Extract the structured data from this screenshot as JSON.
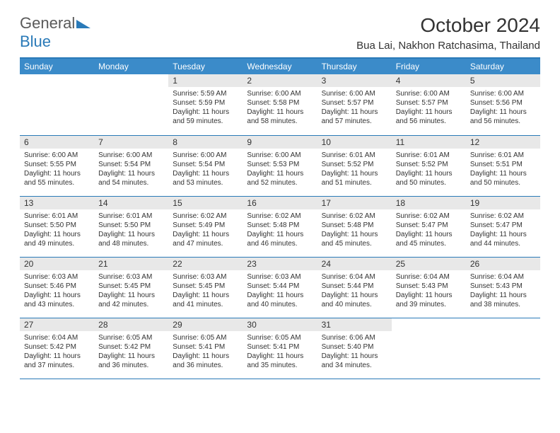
{
  "brand": {
    "general": "General",
    "blue": "Blue"
  },
  "title": "October 2024",
  "location": "Bua Lai, Nakhon Ratchasima, Thailand",
  "colors": {
    "header_bg": "#3b8bc9",
    "header_text": "#ffffff",
    "border": "#2a7ab8",
    "daynum_bg": "#e8e8e8",
    "text": "#333333",
    "logo_gray": "#5a5a5a",
    "logo_blue": "#2a7ab8"
  },
  "day_headers": [
    "Sunday",
    "Monday",
    "Tuesday",
    "Wednesday",
    "Thursday",
    "Friday",
    "Saturday"
  ],
  "weeks": [
    [
      null,
      null,
      {
        "n": "1",
        "sr": "5:59 AM",
        "ss": "5:59 PM",
        "dl": "11 hours and 59 minutes."
      },
      {
        "n": "2",
        "sr": "6:00 AM",
        "ss": "5:58 PM",
        "dl": "11 hours and 58 minutes."
      },
      {
        "n": "3",
        "sr": "6:00 AM",
        "ss": "5:57 PM",
        "dl": "11 hours and 57 minutes."
      },
      {
        "n": "4",
        "sr": "6:00 AM",
        "ss": "5:57 PM",
        "dl": "11 hours and 56 minutes."
      },
      {
        "n": "5",
        "sr": "6:00 AM",
        "ss": "5:56 PM",
        "dl": "11 hours and 56 minutes."
      }
    ],
    [
      {
        "n": "6",
        "sr": "6:00 AM",
        "ss": "5:55 PM",
        "dl": "11 hours and 55 minutes."
      },
      {
        "n": "7",
        "sr": "6:00 AM",
        "ss": "5:54 PM",
        "dl": "11 hours and 54 minutes."
      },
      {
        "n": "8",
        "sr": "6:00 AM",
        "ss": "5:54 PM",
        "dl": "11 hours and 53 minutes."
      },
      {
        "n": "9",
        "sr": "6:00 AM",
        "ss": "5:53 PM",
        "dl": "11 hours and 52 minutes."
      },
      {
        "n": "10",
        "sr": "6:01 AM",
        "ss": "5:52 PM",
        "dl": "11 hours and 51 minutes."
      },
      {
        "n": "11",
        "sr": "6:01 AM",
        "ss": "5:52 PM",
        "dl": "11 hours and 50 minutes."
      },
      {
        "n": "12",
        "sr": "6:01 AM",
        "ss": "5:51 PM",
        "dl": "11 hours and 50 minutes."
      }
    ],
    [
      {
        "n": "13",
        "sr": "6:01 AM",
        "ss": "5:50 PM",
        "dl": "11 hours and 49 minutes."
      },
      {
        "n": "14",
        "sr": "6:01 AM",
        "ss": "5:50 PM",
        "dl": "11 hours and 48 minutes."
      },
      {
        "n": "15",
        "sr": "6:02 AM",
        "ss": "5:49 PM",
        "dl": "11 hours and 47 minutes."
      },
      {
        "n": "16",
        "sr": "6:02 AM",
        "ss": "5:48 PM",
        "dl": "11 hours and 46 minutes."
      },
      {
        "n": "17",
        "sr": "6:02 AM",
        "ss": "5:48 PM",
        "dl": "11 hours and 45 minutes."
      },
      {
        "n": "18",
        "sr": "6:02 AM",
        "ss": "5:47 PM",
        "dl": "11 hours and 45 minutes."
      },
      {
        "n": "19",
        "sr": "6:02 AM",
        "ss": "5:47 PM",
        "dl": "11 hours and 44 minutes."
      }
    ],
    [
      {
        "n": "20",
        "sr": "6:03 AM",
        "ss": "5:46 PM",
        "dl": "11 hours and 43 minutes."
      },
      {
        "n": "21",
        "sr": "6:03 AM",
        "ss": "5:45 PM",
        "dl": "11 hours and 42 minutes."
      },
      {
        "n": "22",
        "sr": "6:03 AM",
        "ss": "5:45 PM",
        "dl": "11 hours and 41 minutes."
      },
      {
        "n": "23",
        "sr": "6:03 AM",
        "ss": "5:44 PM",
        "dl": "11 hours and 40 minutes."
      },
      {
        "n": "24",
        "sr": "6:04 AM",
        "ss": "5:44 PM",
        "dl": "11 hours and 40 minutes."
      },
      {
        "n": "25",
        "sr": "6:04 AM",
        "ss": "5:43 PM",
        "dl": "11 hours and 39 minutes."
      },
      {
        "n": "26",
        "sr": "6:04 AM",
        "ss": "5:43 PM",
        "dl": "11 hours and 38 minutes."
      }
    ],
    [
      {
        "n": "27",
        "sr": "6:04 AM",
        "ss": "5:42 PM",
        "dl": "11 hours and 37 minutes."
      },
      {
        "n": "28",
        "sr": "6:05 AM",
        "ss": "5:42 PM",
        "dl": "11 hours and 36 minutes."
      },
      {
        "n": "29",
        "sr": "6:05 AM",
        "ss": "5:41 PM",
        "dl": "11 hours and 36 minutes."
      },
      {
        "n": "30",
        "sr": "6:05 AM",
        "ss": "5:41 PM",
        "dl": "11 hours and 35 minutes."
      },
      {
        "n": "31",
        "sr": "6:06 AM",
        "ss": "5:40 PM",
        "dl": "11 hours and 34 minutes."
      },
      null,
      null
    ]
  ],
  "labels": {
    "sunrise": "Sunrise:",
    "sunset": "Sunset:",
    "daylight": "Daylight:"
  }
}
